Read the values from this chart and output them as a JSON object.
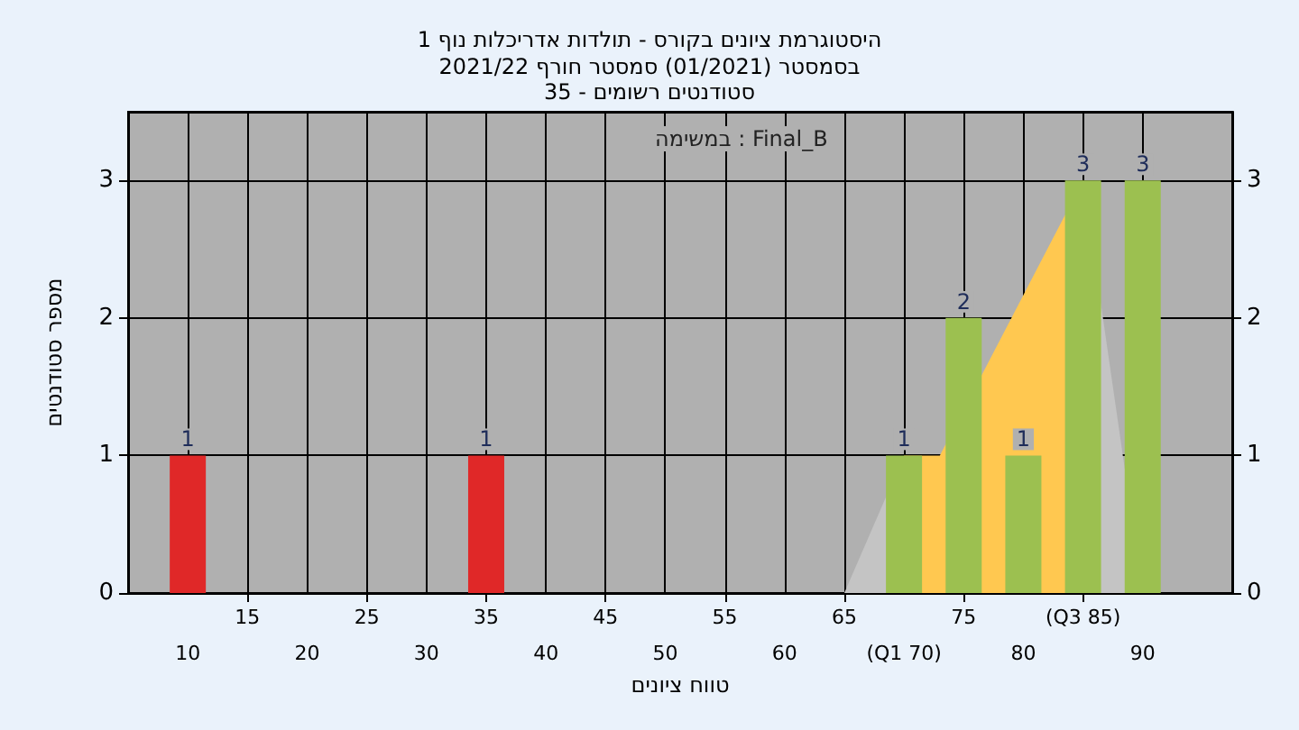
{
  "chart_data": {
    "type": "bar",
    "title": "היסטוגרמת ציונים בקורס - תולדות אדריכלות נוף 1",
    "subtitle": "בסמסטר (01/2021) סמסטר חורף 2021/22\nסטודנטים רשומים - 35",
    "xlabel": "טווח ציונים",
    "ylabel": "מספר סטודנטים",
    "annotations": [
      "במשימה : Final_B"
    ],
    "series": [
      {
        "type": "area",
        "color": "#c4c4c4",
        "x": [
          65,
          70
        ],
        "values": [
          0,
          1
        ]
      },
      {
        "type": "area",
        "color": "#ffc850",
        "x": [
          70,
          73,
          85
        ],
        "values": [
          1,
          1,
          3
        ]
      },
      {
        "type": "area",
        "color": "#c4c4c4",
        "x": [
          85,
          90
        ],
        "values": [
          3,
          0
        ]
      },
      {
        "x": [
          10,
          35,
          70,
          75,
          80,
          85,
          90
        ],
        "values": [
          1,
          1,
          1,
          2,
          1,
          3,
          3
        ],
        "value_labels": [
          "1",
          "1",
          "1",
          "2",
          "1",
          "3",
          "3"
        ],
        "colors": [
          "#e02828",
          "#e02828",
          "#9cc050",
          "#9cc050",
          "#9cc050",
          "#9cc050",
          "#9cc050"
        ]
      }
    ],
    "xlim": [
      5,
      97.5
    ],
    "xticks": [
      10,
      20,
      30,
      40,
      50,
      60,
      {
        "value": 70,
        "label": "(Q1 70)"
      },
      80,
      90
    ],
    "x2lim": [
      5,
      97.5
    ],
    "x2ticks": [
      15,
      25,
      35,
      45,
      55,
      65,
      75,
      {
        "value": 85,
        "label": "(Q3 85)"
      }
    ],
    "ylim": [
      0,
      3.5
    ],
    "yticks": [
      0,
      1,
      2,
      3
    ],
    "y2lim": [
      0,
      3.5
    ],
    "y2ticks": [
      0,
      1,
      2,
      3
    ],
    "grid": true
  }
}
